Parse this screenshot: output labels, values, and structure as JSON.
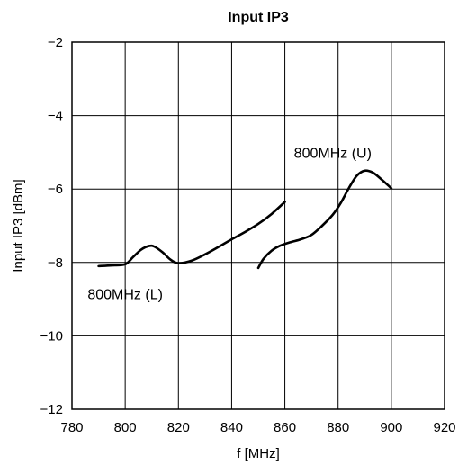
{
  "chart_data": {
    "type": "line",
    "title": "Input IP3",
    "xlabel": "f [MHz]",
    "ylabel": "Input IP3 [dBm]",
    "xlim": [
      780,
      920
    ],
    "ylim": [
      -12,
      -2
    ],
    "x_ticks": [
      780,
      800,
      820,
      840,
      860,
      880,
      900,
      920
    ],
    "y_ticks": [
      -2,
      -4,
      -6,
      -8,
      -10,
      -12
    ],
    "x_tick_labels": [
      "780",
      "800",
      "820",
      "840",
      "860",
      "880",
      "900",
      "920"
    ],
    "y_tick_labels": [
      "−2",
      "−4",
      "−6",
      "−8",
      "−10",
      "−12"
    ],
    "grid": true,
    "series": [
      {
        "name": "800MHz (L)",
        "x": [
          790,
          795,
          800,
          803,
          806,
          809,
          811,
          814,
          817,
          820,
          825,
          830,
          835,
          840,
          845,
          850,
          855,
          860
        ],
        "y": [
          -8.1,
          -8.08,
          -8.05,
          -7.85,
          -7.65,
          -7.55,
          -7.57,
          -7.72,
          -7.92,
          -8.02,
          -7.95,
          -7.78,
          -7.58,
          -7.37,
          -7.17,
          -6.95,
          -6.68,
          -6.35
        ]
      },
      {
        "name": "800MHz (U)",
        "x": [
          850,
          852,
          855,
          858,
          862,
          866,
          870,
          874,
          878,
          881,
          884,
          887,
          890,
          893,
          896,
          900
        ],
        "y": [
          -8.15,
          -7.9,
          -7.68,
          -7.55,
          -7.45,
          -7.37,
          -7.25,
          -7.0,
          -6.7,
          -6.38,
          -5.98,
          -5.64,
          -5.5,
          -5.55,
          -5.72,
          -5.98
        ]
      }
    ],
    "annotations": [
      {
        "text": "800MHz (U)",
        "x": 878,
        "y": -5.0
      },
      {
        "text": "800MHz (L)",
        "x": 800,
        "y": -8.85
      }
    ]
  }
}
